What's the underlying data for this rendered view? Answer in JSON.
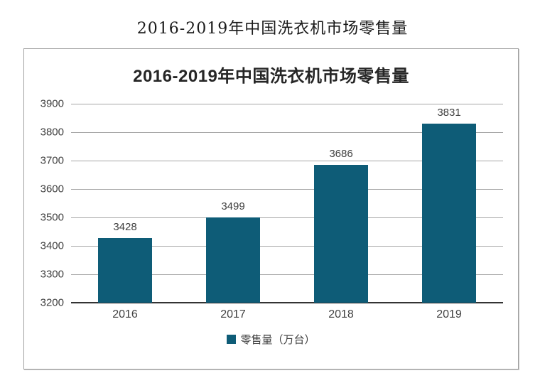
{
  "page": {
    "outer_title": "2016-2019年中国洗衣机市场零售量"
  },
  "chart_data": {
    "type": "bar",
    "title": "2016-2019年中国洗衣机市场零售量",
    "categories": [
      "2016",
      "2017",
      "2018",
      "2019"
    ],
    "values": [
      3428,
      3499,
      3686,
      3831
    ],
    "series_name": "零售量（万台）",
    "legend": [
      "零售量（万台）"
    ],
    "legend_position": "bottom",
    "xlabel": "",
    "ylabel": "",
    "ylim": [
      3200,
      3900
    ],
    "ytick_step": 100,
    "yticks": [
      3200,
      3300,
      3400,
      3500,
      3600,
      3700,
      3800,
      3900
    ],
    "grid": true,
    "show_data_labels": true
  },
  "colors": {
    "bar": "#0e5c77",
    "grid": "#a6a6a6",
    "axis_line": "#333333",
    "tick_text": "#404040",
    "chart_title": "#262626",
    "outer_title": "#1a1a1a",
    "panel_border": "#a0a0a0",
    "background": "#ffffff"
  }
}
